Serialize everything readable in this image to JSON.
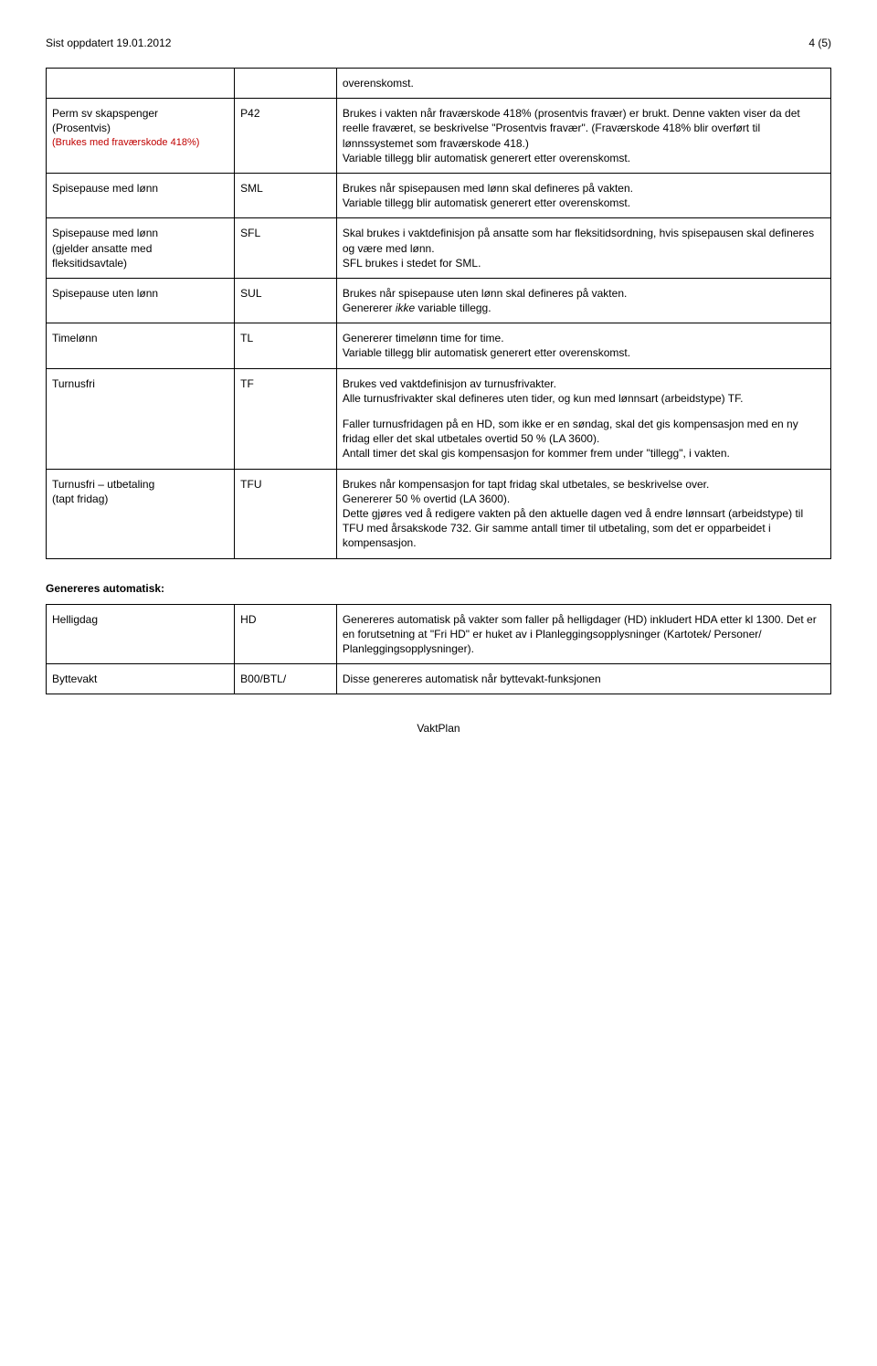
{
  "header": {
    "left": "Sist oppdatert 19.01.2012",
    "right": "4 (5)"
  },
  "table1": {
    "rows": [
      {
        "c1_parts": [],
        "c2": "",
        "c3_parts": [
          {
            "text": "overenskomst."
          }
        ]
      },
      {
        "c1_parts": [
          {
            "text": "Perm sv skapspenger"
          },
          {
            "text": "(Prosentvis)"
          },
          {
            "text": "(Brukes med fraværskode 418%)",
            "class": "small",
            "color": "#c00000"
          }
        ],
        "c2": "P42",
        "c3_parts": [
          {
            "text": "Brukes i vakten når fraværskode 418% (prosentvis fravær) er brukt. Denne vakten viser da det reelle fraværet, se beskrivelse \"Prosentvis fravær\". (Fraværskode 418% blir overført til lønnssystemet som fraværskode 418.)"
          },
          {
            "text": "Variable tillegg blir automatisk generert etter overenskomst."
          }
        ]
      },
      {
        "c1_parts": [
          {
            "text": "Spisepause med lønn"
          }
        ],
        "c2": "SML",
        "c3_parts": [
          {
            "text": "Brukes når spisepausen med lønn skal defineres på vakten."
          },
          {
            "text": "Variable tillegg blir automatisk generert etter overenskomst."
          }
        ]
      },
      {
        "c1_parts": [
          {
            "text": "Spisepause med lønn"
          },
          {
            "text": "(gjelder ansatte med fleksitidsavtale)"
          }
        ],
        "c2": "SFL",
        "c3_parts": [
          {
            "text": "Skal brukes i vaktdefinisjon på ansatte som har fleksitidsordning, hvis spisepausen skal defineres og være med lønn."
          },
          {
            "text": "SFL brukes i stedet for SML."
          }
        ]
      },
      {
        "c1_parts": [
          {
            "text": "Spisepause uten lønn"
          }
        ],
        "c2": "SUL",
        "c3_parts": [
          {
            "text": "Brukes når spisepause uten lønn skal defineres på vakten."
          },
          {
            "html": "Genererer <span class=\"italic\">ikke</span> variable tillegg."
          }
        ]
      },
      {
        "c1_parts": [
          {
            "text": "Timelønn"
          }
        ],
        "c2": "TL",
        "c3_parts": [
          {
            "text": "Genererer timelønn time for time."
          },
          {
            "text": "Variable tillegg blir automatisk generert etter overenskomst."
          }
        ]
      },
      {
        "c1_parts": [
          {
            "text": "Turnusfri"
          }
        ],
        "c2": "TF",
        "c3_parts": [
          {
            "text": "Brukes ved vaktdefinisjon av turnusfrivakter."
          },
          {
            "text": "Alle turnusfrivakter skal defineres uten tider, og kun med lønnsart (arbeidstype) TF.",
            "mb": true
          },
          {
            "text": "Faller turnusfridagen på en HD, som ikke er en søndag, skal det gis kompensasjon med en ny fridag eller det skal utbetales overtid 50 % (LA 3600)."
          },
          {
            "text": "Antall timer det skal gis kompensasjon for kommer frem under \"tillegg\", i vakten."
          }
        ]
      },
      {
        "c1_parts": [
          {
            "text": "Turnusfri – utbetaling"
          },
          {
            "text": "(tapt fridag)"
          }
        ],
        "c2": "TFU",
        "c3_parts": [
          {
            "text": "Brukes når kompensasjon for tapt fridag skal utbetales, se beskrivelse over."
          },
          {
            "text": "Genererer 50 % overtid (LA 3600)."
          },
          {
            "text": "Dette gjøres ved å redigere vakten på den aktuelle dagen ved å endre lønnsart (arbeidstype) til TFU med årsakskode 732. Gir samme antall timer til utbetaling, som det er opparbeidet i kompensasjon."
          }
        ]
      }
    ]
  },
  "section2_heading": "Genereres automatisk:",
  "table2": {
    "rows": [
      {
        "c1_parts": [
          {
            "text": "Helligdag"
          }
        ],
        "c2": "HD",
        "c3_parts": [
          {
            "text": "Genereres automatisk på vakter som faller på helligdager (HD) inkludert HDA etter kl 1300. Det er en forutsetning at \"Fri HD\" er huket av i Planleggingsopplysninger (Kartotek/ Personer/ Planleggingsopplysninger)."
          }
        ]
      },
      {
        "c1_parts": [
          {
            "text": "Byttevakt"
          }
        ],
        "c2": "B00/BTL/",
        "c3_parts": [
          {
            "text": "Disse genereres automatisk når byttevakt-funksjonen"
          }
        ]
      }
    ]
  },
  "footer": "VaktPlan"
}
